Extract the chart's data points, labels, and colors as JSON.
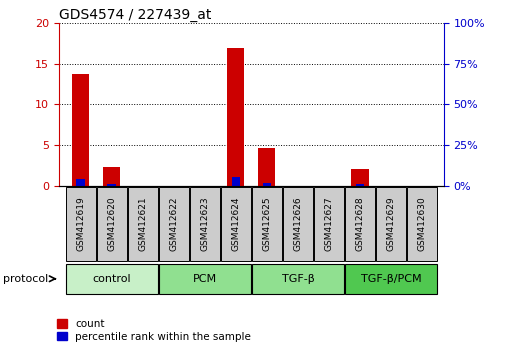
{
  "title": "GDS4574 / 227439_at",
  "samples": [
    "GSM412619",
    "GSM412620",
    "GSM412621",
    "GSM412622",
    "GSM412623",
    "GSM412624",
    "GSM412625",
    "GSM412626",
    "GSM412627",
    "GSM412628",
    "GSM412629",
    "GSM412630"
  ],
  "count_values": [
    13.7,
    2.3,
    0,
    0,
    0,
    16.9,
    4.7,
    0,
    0,
    2.1,
    0,
    0
  ],
  "percentile_values": [
    4.5,
    1.2,
    0,
    0,
    0,
    5.7,
    2.0,
    0,
    0,
    1.0,
    0,
    0
  ],
  "groups": [
    {
      "label": "control",
      "start": 0,
      "end": 3,
      "color": "#c8f0c8"
    },
    {
      "label": "PCM",
      "start": 3,
      "end": 6,
      "color": "#90e090"
    },
    {
      "label": "TGF-β",
      "start": 6,
      "end": 9,
      "color": "#90e090"
    },
    {
      "label": "TGF-β/PCM",
      "start": 9,
      "end": 12,
      "color": "#50c850"
    }
  ],
  "ylim_left": [
    0,
    20
  ],
  "ylim_right": [
    0,
    100
  ],
  "yticks_left": [
    0,
    5,
    10,
    15,
    20
  ],
  "yticks_right": [
    0,
    25,
    50,
    75,
    100
  ],
  "ytick_labels_left": [
    "0",
    "5",
    "10",
    "15",
    "20"
  ],
  "ytick_labels_right": [
    "0%",
    "25%",
    "50%",
    "75%",
    "100%"
  ],
  "count_color": "#cc0000",
  "percentile_color": "#0000cc",
  "bar_width": 0.55,
  "blue_bar_width": 0.28,
  "background_color": "#ffffff",
  "tick_color_left": "#cc0000",
  "tick_color_right": "#0000cc",
  "sample_box_color": "#cccccc",
  "protocol_label": "protocol"
}
